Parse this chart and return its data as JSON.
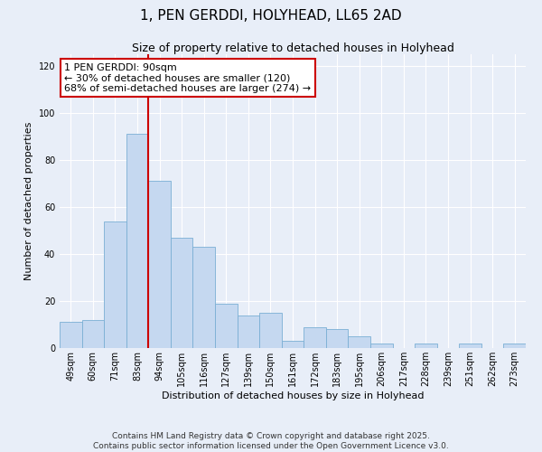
{
  "title": "1, PEN GERDDI, HOLYHEAD, LL65 2AD",
  "subtitle": "Size of property relative to detached houses in Holyhead",
  "xlabel": "Distribution of detached houses by size in Holyhead",
  "ylabel": "Number of detached properties",
  "bar_labels": [
    "49sqm",
    "60sqm",
    "71sqm",
    "83sqm",
    "94sqm",
    "105sqm",
    "116sqm",
    "127sqm",
    "139sqm",
    "150sqm",
    "161sqm",
    "172sqm",
    "183sqm",
    "195sqm",
    "206sqm",
    "217sqm",
    "228sqm",
    "239sqm",
    "251sqm",
    "262sqm",
    "273sqm"
  ],
  "bar_values": [
    11,
    12,
    54,
    91,
    71,
    47,
    43,
    19,
    14,
    15,
    3,
    9,
    8,
    5,
    2,
    0,
    2,
    0,
    2,
    0,
    2
  ],
  "bar_color": "#c5d8f0",
  "bar_edge_color": "#7aafd4",
  "vline_color": "#cc0000",
  "annotation_text": "1 PEN GERDDI: 90sqm\n← 30% of detached houses are smaller (120)\n68% of semi-detached houses are larger (274) →",
  "annotation_box_color": "#ffffff",
  "annotation_box_edge": "#cc0000",
  "ylim": [
    0,
    125
  ],
  "yticks": [
    0,
    20,
    40,
    60,
    80,
    100,
    120
  ],
  "background_color": "#e8eef8",
  "plot_bg_color": "#e8eef8",
  "footer_line1": "Contains HM Land Registry data © Crown copyright and database right 2025.",
  "footer_line2": "Contains public sector information licensed under the Open Government Licence v3.0.",
  "title_fontsize": 11,
  "subtitle_fontsize": 9,
  "axis_label_fontsize": 8,
  "tick_fontsize": 7,
  "annotation_fontsize": 8,
  "footer_fontsize": 6.5
}
